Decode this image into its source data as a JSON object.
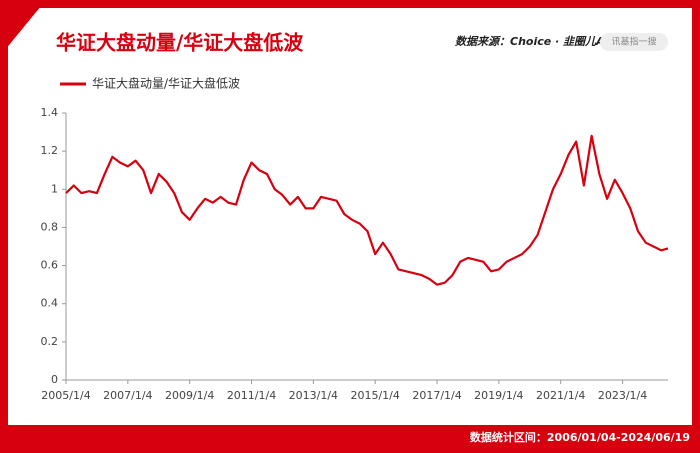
{
  "chart_data": {
    "type": "line",
    "title": "华证大盘动量/华证大盘低波",
    "source": "数据来源：Choice · 韭圈儿App",
    "search": "讯基指一搜",
    "footer": "数据统计区间：2006/01/04-2024/06/19",
    "x": [
      2005.0,
      2005.25,
      2005.5,
      2005.75,
      2006.0,
      2006.25,
      2006.5,
      2006.75,
      2007.0,
      2007.25,
      2007.5,
      2007.75,
      2008.0,
      2008.25,
      2008.5,
      2008.75,
      2009.0,
      2009.25,
      2009.5,
      2009.75,
      2010.0,
      2010.25,
      2010.5,
      2010.75,
      2011.0,
      2011.25,
      2011.5,
      2011.75,
      2012.0,
      2012.25,
      2012.5,
      2012.75,
      2013.0,
      2013.25,
      2013.5,
      2013.75,
      2014.0,
      2014.25,
      2014.5,
      2014.75,
      2015.0,
      2015.25,
      2015.5,
      2015.75,
      2016.0,
      2016.25,
      2016.5,
      2016.75,
      2017.0,
      2017.25,
      2017.5,
      2017.75,
      2018.0,
      2018.25,
      2018.5,
      2018.75,
      2019.0,
      2019.25,
      2019.5,
      2019.75,
      2020.0,
      2020.25,
      2020.5,
      2020.75,
      2021.0,
      2021.25,
      2021.5,
      2021.75,
      2022.0,
      2022.25,
      2022.5,
      2022.75,
      2023.0,
      2023.25,
      2023.5,
      2023.75,
      2024.0,
      2024.25,
      2024.47
    ],
    "series": [
      {
        "name": "华证大盘动量/华证大盘低波",
        "color": "#d7000f",
        "values": [
          0.98,
          1.02,
          0.98,
          0.99,
          0.98,
          1.08,
          1.17,
          1.14,
          1.12,
          1.15,
          1.1,
          0.98,
          1.08,
          1.04,
          0.98,
          0.88,
          0.84,
          0.9,
          0.95,
          0.93,
          0.96,
          0.93,
          0.92,
          1.05,
          1.14,
          1.1,
          1.08,
          1.0,
          0.97,
          0.92,
          0.96,
          0.9,
          0.9,
          0.96,
          0.95,
          0.94,
          0.87,
          0.84,
          0.82,
          0.78,
          0.66,
          0.72,
          0.66,
          0.58,
          0.57,
          0.56,
          0.55,
          0.53,
          0.5,
          0.51,
          0.55,
          0.62,
          0.64,
          0.63,
          0.62,
          0.57,
          0.58,
          0.62,
          0.64,
          0.66,
          0.7,
          0.76,
          0.88,
          1.0,
          1.08,
          1.18,
          1.25,
          1.02,
          1.28,
          1.08,
          0.95,
          1.05,
          0.98,
          0.9,
          0.78,
          0.72,
          0.7,
          0.68,
          0.69
        ]
      }
    ],
    "xlim": [
      2005.0,
      2024.47
    ],
    "xticks": [
      {
        "value": 2005.0,
        "label": "2005/1/4"
      },
      {
        "value": 2007.0,
        "label": "2007/1/4"
      },
      {
        "value": 2009.0,
        "label": "2009/1/4"
      },
      {
        "value": 2011.0,
        "label": "2011/1/4"
      },
      {
        "value": 2013.0,
        "label": "2013/1/4"
      },
      {
        "value": 2015.0,
        "label": "2015/1/4"
      },
      {
        "value": 2017.0,
        "label": "2017/1/4"
      },
      {
        "value": 2019.0,
        "label": "2019/1/4"
      },
      {
        "value": 2021.0,
        "label": "2021/1/4"
      },
      {
        "value": 2023.0,
        "label": "2023/1/4"
      }
    ],
    "ylim": [
      0,
      1.4
    ],
    "yticks": [
      0,
      0.2,
      0.4,
      0.6,
      0.8,
      1,
      1.2,
      1.4
    ]
  }
}
